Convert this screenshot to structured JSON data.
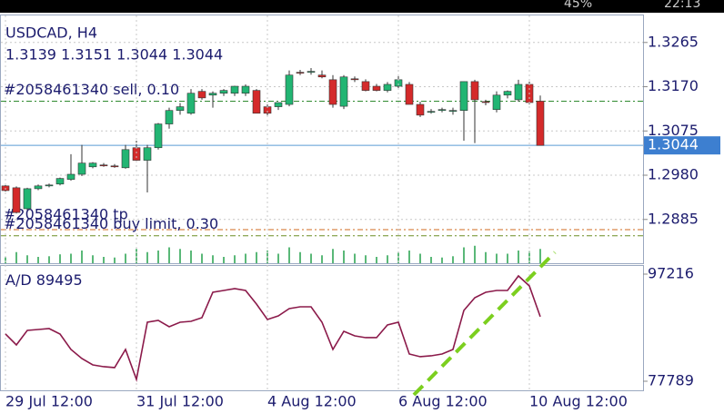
{
  "status_bar": {
    "battery": "45%",
    "time": "22:13"
  },
  "chart_data": [
    {
      "type": "candlestick",
      "title": "USDCAD, H4",
      "subtitle": "1.3139 1.3151 1.3044 1.3044",
      "open": [
        1.2957,
        1.2953,
        1.2908,
        1.2951,
        1.2957,
        1.2961,
        1.2971,
        1.2982,
        1.2998,
        1.3002,
        1.3,
        1.2996,
        1.3039,
        1.3012,
        1.3039,
        1.309,
        1.3119,
        1.3113,
        1.316,
        1.3152,
        1.3156,
        1.3156,
        1.3156,
        1.3162,
        1.3127,
        1.3127,
        1.3132,
        1.3201,
        1.3201,
        1.3195,
        1.3185,
        1.3128,
        1.3187,
        1.3181,
        1.3171,
        1.3162,
        1.3171,
        1.3175,
        1.3132,
        1.3117,
        1.3121,
        1.3119,
        1.3119,
        1.3181,
        1.3138,
        1.3121,
        1.3152,
        1.3142,
        1.3175,
        1.3139
      ],
      "high": [
        1.296,
        1.2956,
        1.2953,
        1.296,
        1.2962,
        1.2975,
        1.3025,
        1.3045,
        1.3008,
        1.3006,
        1.3004,
        1.3045,
        1.3054,
        1.3045,
        1.3092,
        1.3125,
        1.3135,
        1.3165,
        1.3165,
        1.316,
        1.3165,
        1.3172,
        1.3175,
        1.3165,
        1.3132,
        1.3136,
        1.3205,
        1.3206,
        1.321,
        1.3205,
        1.3195,
        1.3195,
        1.3192,
        1.3186,
        1.3176,
        1.318,
        1.3195,
        1.318,
        1.3138,
        1.3122,
        1.3125,
        1.3125,
        1.3181,
        1.3185,
        1.3142,
        1.316,
        1.3162,
        1.3185,
        1.3181,
        1.3151
      ],
      "low": [
        1.2945,
        1.2898,
        1.2905,
        1.2948,
        1.2954,
        1.2958,
        1.2968,
        1.2978,
        1.2995,
        1.2998,
        1.2996,
        1.2994,
        1.301,
        1.2943,
        1.3035,
        1.308,
        1.311,
        1.311,
        1.3142,
        1.3125,
        1.315,
        1.315,
        1.315,
        1.3113,
        1.3105,
        1.312,
        1.3128,
        1.3195,
        1.3196,
        1.3188,
        1.3125,
        1.3122,
        1.318,
        1.316,
        1.316,
        1.3158,
        1.3165,
        1.3132,
        1.3105,
        1.3112,
        1.3115,
        1.311,
        1.3054,
        1.3049,
        1.313,
        1.3115,
        1.3145,
        1.3138,
        1.3132,
        1.3044
      ],
      "close": [
        1.2947,
        1.29,
        1.2951,
        1.2957,
        1.2959,
        1.2973,
        1.2982,
        1.3006,
        1.3006,
        1.3,
        1.2998,
        1.3035,
        1.3012,
        1.3039,
        1.309,
        1.3119,
        1.3127,
        1.3156,
        1.3146,
        1.3156,
        1.3162,
        1.3171,
        1.3171,
        1.3113,
        1.3113,
        1.3136,
        1.3195,
        1.32,
        1.3203,
        1.3191,
        1.3132,
        1.3191,
        1.3185,
        1.3162,
        1.3162,
        1.3175,
        1.3185,
        1.3132,
        1.3109,
        1.3117,
        1.3121,
        1.3119,
        1.3181,
        1.3142,
        1.3136,
        1.3152,
        1.316,
        1.3175,
        1.3136,
        1.3044
      ],
      "volume": [
        20,
        35,
        25,
        20,
        22,
        28,
        30,
        40,
        25,
        20,
        18,
        30,
        45,
        35,
        40,
        50,
        45,
        40,
        30,
        25,
        20,
        25,
        30,
        35,
        40,
        30,
        50,
        35,
        30,
        25,
        45,
        40,
        30,
        25,
        20,
        25,
        35,
        40,
        30,
        20,
        18,
        22,
        50,
        55,
        35,
        30,
        30,
        40,
        38,
        45
      ],
      "vlim": [
        0,
        100
      ],
      "up_color": "#22b573",
      "down_color": "#d42a2a",
      "ylim": [
        1.2791,
        1.3325
      ],
      "yticks": [
        1.3265,
        {
          "value": 1.317,
          "label": "1.3170"
        },
        1.3075,
        {
          "value": 1.298,
          "label": "1.2980"
        },
        1.2885
      ],
      "grid": true,
      "current_price": 1.3044,
      "levels": [
        {
          "label": "#2058461340 sell, 0.10",
          "value": 1.3139,
          "color": "#2f8a2f"
        },
        {
          "label": "#2058461340 buy limit, 0.30",
          "value": 1.285,
          "color": "#6b8e23"
        },
        {
          "label": "#2058461340 tp",
          "value": 1.2863,
          "color": "#d2691e"
        }
      ]
    },
    {
      "type": "line",
      "title": "A/D",
      "color": "#8b1a4a",
      "categories": [
        "29 Jul 12:00",
        null,
        null,
        null,
        null,
        null,
        null,
        null,
        null,
        null,
        null,
        null,
        "31 Jul 12:00",
        null,
        null,
        null,
        null,
        null,
        null,
        null,
        null,
        null,
        null,
        null,
        "4 Aug 12:00",
        null,
        null,
        null,
        null,
        null,
        null,
        null,
        null,
        null,
        null,
        null,
        "6 Aug 12:00",
        null,
        null,
        null,
        null,
        null,
        null,
        null,
        null,
        null,
        null,
        null,
        "10 Aug 12:00",
        null
      ],
      "values": [
        86352,
        84377,
        87011,
        87175,
        87340,
        86352,
        83554,
        81908,
        80756,
        80427,
        80262,
        83554,
        78122,
        88492,
        88821,
        87669,
        88492,
        88657,
        89315,
        93924,
        94253,
        94582,
        94253,
        91784,
        88986,
        89644,
        90961,
        91290,
        91290,
        88492,
        83554,
        86846,
        86023,
        85694,
        85694,
        87998,
        88492,
        82731,
        82237,
        82402,
        82731,
        83554,
        90632,
        92936,
        93924,
        94253,
        94253,
        96887,
        95076,
        89495
      ],
      "ylim": [
        76143,
        98862
      ],
      "yticks": [
        97216,
        77789
      ]
    }
  ]
}
